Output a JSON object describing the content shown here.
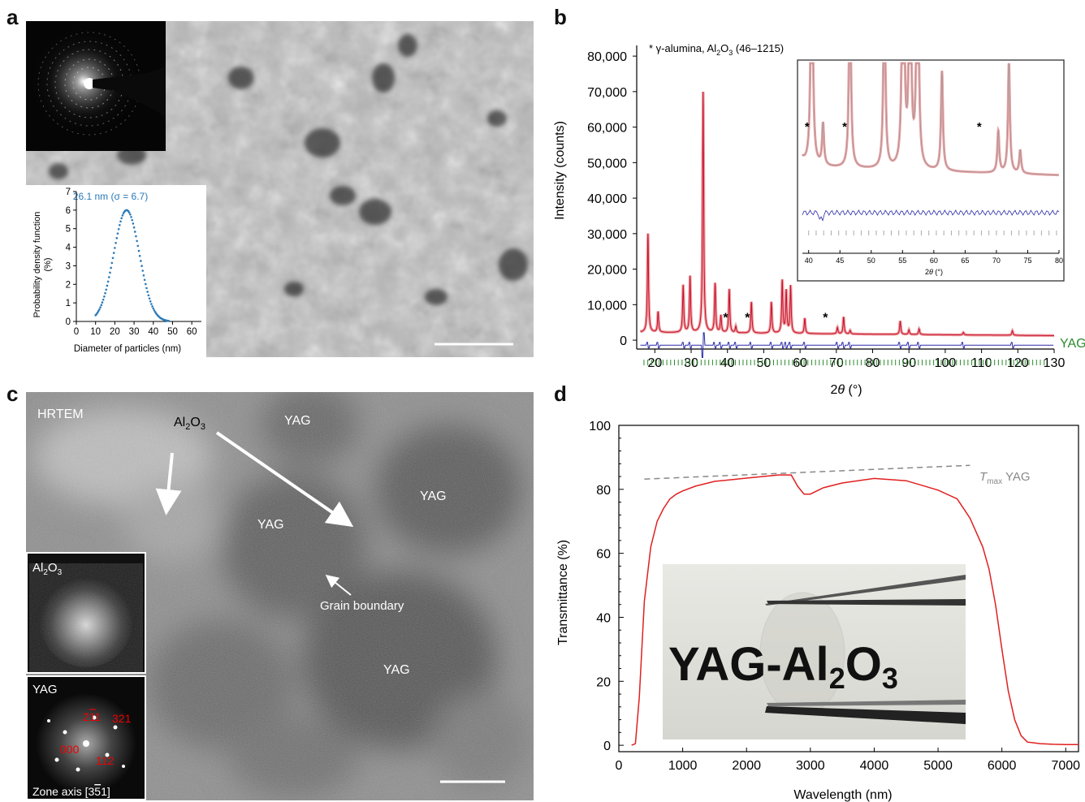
{
  "panels": {
    "a": "a",
    "b": "b",
    "c": "c",
    "d": "d"
  },
  "colors": {
    "fit_red": "#c8102e",
    "obs_red": "#e8888b",
    "diff_blue": "#2a2aa8",
    "tick_green": "#2e8b2e",
    "gauss_blue": "#2a7ab8",
    "trans_red": "#e02020",
    "dashed_gray": "#888888"
  },
  "panel_a": {
    "inset_chart": {
      "type": "scatter",
      "title": "26.1 nm (σ = 6.7)",
      "xlabel": "Diameter of particles (nm)",
      "ylabel_lines": [
        "Probability density function",
        "(%)"
      ],
      "xticks": [
        0,
        10,
        20,
        30,
        40,
        50,
        60
      ],
      "yticks": [
        0,
        1,
        2,
        3,
        4,
        5,
        6,
        7
      ],
      "xlim": [
        0,
        65
      ],
      "ylim": [
        0,
        7
      ],
      "gaussian": {
        "mean": 26.1,
        "sigma": 6.7,
        "x_range": [
          10,
          48
        ]
      }
    }
  },
  "panel_b": {
    "chart_data": {
      "type": "line",
      "annotation_parts": [
        "* γ-alumina, Al",
        "2",
        "O",
        "3",
        " (46–1215)"
      ],
      "xlabel_parts": [
        "2",
        "θ",
        " (°)"
      ],
      "ylabel": "Intensity (counts)",
      "xlim": [
        15,
        130
      ],
      "ylim": [
        -2500,
        83000
      ],
      "xticks": [
        20,
        30,
        40,
        50,
        60,
        70,
        80,
        90,
        100,
        110,
        120,
        130
      ],
      "yticks": [
        0,
        10000,
        20000,
        30000,
        40000,
        50000,
        60000,
        70000,
        80000
      ],
      "ytick_labels": [
        "0",
        "10,000",
        "20,000",
        "30,000",
        "40,000",
        "50,000",
        "60,000",
        "70,000",
        "80,000"
      ],
      "phase_label": "YAG",
      "background": 2200,
      "peaks": [
        {
          "x": 18.1,
          "y": 30000
        },
        {
          "x": 20.9,
          "y": 8000
        },
        {
          "x": 27.8,
          "y": 15500
        },
        {
          "x": 29.7,
          "y": 18000
        },
        {
          "x": 33.3,
          "y": 70000
        },
        {
          "x": 36.6,
          "y": 16000
        },
        {
          "x": 38.2,
          "y": 7000
        },
        {
          "x": 40.5,
          "y": 14500
        },
        {
          "x": 42.3,
          "y": 4000
        },
        {
          "x": 46.6,
          "y": 11000
        },
        {
          "x": 52.1,
          "y": 11000
        },
        {
          "x": 55.1,
          "y": 17000
        },
        {
          "x": 56.2,
          "y": 14000
        },
        {
          "x": 57.4,
          "y": 15500
        },
        {
          "x": 61.3,
          "y": 6500
        },
        {
          "x": 70.3,
          "y": 4000
        },
        {
          "x": 72.0,
          "y": 7000
        },
        {
          "x": 73.8,
          "y": 3200
        },
        {
          "x": 87.6,
          "y": 6000
        },
        {
          "x": 90.0,
          "y": 3500
        },
        {
          "x": 92.8,
          "y": 3800
        },
        {
          "x": 105.0,
          "y": 2900
        },
        {
          "x": 118.5,
          "y": 3500
        }
      ],
      "asterisks": [
        39.5,
        45.5,
        67.0
      ],
      "inset": {
        "xlabel_parts": [
          "2",
          "θ",
          " (°)"
        ],
        "xticks": [
          40,
          45,
          50,
          55,
          60,
          65,
          70,
          75,
          80
        ],
        "xlim": [
          39,
          80
        ],
        "asterisks": [
          39.5,
          45.5,
          67.0
        ]
      }
    }
  },
  "panel_c": {
    "hrtem_label": "HRTEM",
    "al2o3_main": [
      "Al",
      "2",
      "O",
      "3"
    ],
    "yag_labels": [
      "YAG",
      "YAG",
      "YAG",
      "YAG"
    ],
    "grain_boundary": "Grain boundary",
    "inset_al2o3": [
      "Al",
      "2",
      "O",
      "3"
    ],
    "inset_yag": "YAG",
    "spots": [
      "211",
      "321",
      "000",
      "112"
    ],
    "zone_axis_parts": [
      "Zone axis [3",
      "5",
      "1]"
    ]
  },
  "panel_d": {
    "chart_data": {
      "type": "line",
      "xlabel": "Wavelength (nm)",
      "ylabel": "Transmittance (%)",
      "xlim": [
        0,
        7200
      ],
      "ylim": [
        -2,
        100
      ],
      "xticks": [
        0,
        1000,
        2000,
        3000,
        4000,
        5000,
        6000,
        7000
      ],
      "yticks": [
        0,
        20,
        40,
        60,
        80,
        100
      ],
      "series": [
        {
          "x": [
            200,
            260,
            320,
            400,
            500,
            600,
            700,
            800,
            900,
            1000,
            1200,
            1500,
            2000,
            2500,
            2700,
            2800,
            2900,
            3000,
            3200,
            3500,
            4000,
            4500,
            5000,
            5300,
            5500,
            5700,
            5800,
            5900,
            6000,
            6100,
            6200,
            6300,
            6400,
            6600,
            6800,
            7000,
            7200
          ],
          "y": [
            0,
            0.5,
            15,
            45,
            62,
            70,
            74,
            77,
            78.5,
            79.5,
            81,
            82.5,
            83.5,
            84.5,
            84.5,
            81,
            78.5,
            78.5,
            80.5,
            82,
            83.5,
            82.5,
            80,
            77,
            71,
            62,
            55,
            44,
            30,
            17,
            8,
            3,
            1,
            0.5,
            0.3,
            0.2,
            0.2
          ]
        }
      ],
      "tmax": {
        "x": [
          400,
          5500
        ],
        "y": [
          83.2,
          87.5
        ]
      },
      "tmax_label": [
        "T",
        "max",
        " YAG"
      ],
      "photo_text_parts": [
        "YAG-Al",
        "2",
        "O",
        "3"
      ]
    }
  }
}
